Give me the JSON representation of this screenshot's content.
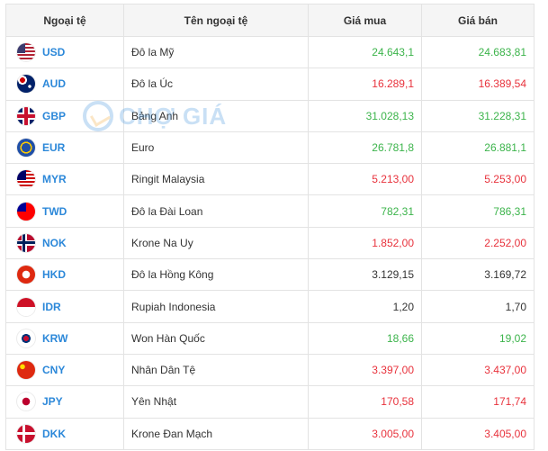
{
  "headers": [
    "Ngoại tệ",
    "Tên ngoại tệ",
    "Giá mua",
    "Giá bán"
  ],
  "watermark": "CHỢ GIÁ",
  "colors": {
    "up": "#3cb44b",
    "down": "#e8323c",
    "code": "#2c88d9"
  },
  "rows": [
    {
      "code": "USD",
      "name": "Đô la Mỹ",
      "buy": "24.643,1",
      "sell": "24.683,81",
      "buy_trend": "up",
      "sell_trend": "up",
      "flag": "us-flag-icon"
    },
    {
      "code": "AUD",
      "name": "Đô la Úc",
      "buy": "16.289,1",
      "sell": "16.389,54",
      "buy_trend": "down",
      "sell_trend": "down",
      "flag": "au-flag-icon"
    },
    {
      "code": "GBP",
      "name": "Bảng Anh",
      "buy": "31.028,13",
      "sell": "31.228,31",
      "buy_trend": "up",
      "sell_trend": "up",
      "flag": "gb-flag-icon"
    },
    {
      "code": "EUR",
      "name": "Euro",
      "buy": "26.781,8",
      "sell": "26.881,1",
      "buy_trend": "up",
      "sell_trend": "up",
      "flag": "eu-flag-icon"
    },
    {
      "code": "MYR",
      "name": "Ringit Malaysia",
      "buy": "5.213,00",
      "sell": "5.253,00",
      "buy_trend": "down",
      "sell_trend": "down",
      "flag": "my-flag-icon"
    },
    {
      "code": "TWD",
      "name": "Đô la Đài Loan",
      "buy": "782,31",
      "sell": "786,31",
      "buy_trend": "up",
      "sell_trend": "up",
      "flag": "tw-flag-icon"
    },
    {
      "code": "NOK",
      "name": "Krone Na Uy",
      "buy": "1.852,00",
      "sell": "2.252,00",
      "buy_trend": "down",
      "sell_trend": "down",
      "flag": "no-flag-icon"
    },
    {
      "code": "HKD",
      "name": "Đô la Hồng Kông",
      "buy": "3.129,15",
      "sell": "3.169,72",
      "buy_trend": "same",
      "sell_trend": "same",
      "flag": "hk-flag-icon"
    },
    {
      "code": "IDR",
      "name": "Rupiah Indonesia",
      "buy": "1,20",
      "sell": "1,70",
      "buy_trend": "same",
      "sell_trend": "same",
      "flag": "id-flag-icon"
    },
    {
      "code": "KRW",
      "name": "Won Hàn Quốc",
      "buy": "18,66",
      "sell": "19,02",
      "buy_trend": "up",
      "sell_trend": "up",
      "flag": "kr-flag-icon"
    },
    {
      "code": "CNY",
      "name": "Nhân Dân Tệ",
      "buy": "3.397,00",
      "sell": "3.437,00",
      "buy_trend": "down",
      "sell_trend": "down",
      "flag": "cn-flag-icon"
    },
    {
      "code": "JPY",
      "name": "Yên Nhật",
      "buy": "170,58",
      "sell": "171,74",
      "buy_trend": "down",
      "sell_trend": "down",
      "flag": "jp-flag-icon"
    },
    {
      "code": "DKK",
      "name": "Krone Đan Mạch",
      "buy": "3.005,00",
      "sell": "3.405,00",
      "buy_trend": "down",
      "sell_trend": "down",
      "flag": "dk-flag-icon"
    }
  ]
}
